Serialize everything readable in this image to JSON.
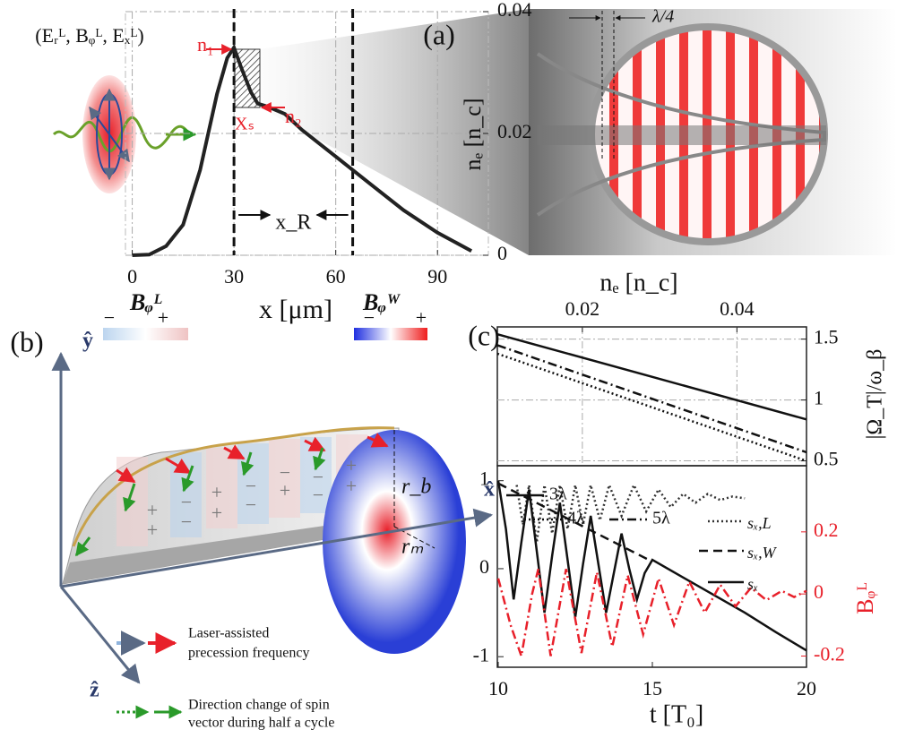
{
  "chart_data": [
    {
      "type": "line",
      "title": "(a)",
      "xlabel": "x [μm]",
      "ylabel": "nₑ [n_c]",
      "x": [
        0,
        5,
        10,
        15,
        20,
        25,
        28,
        30,
        32,
        35,
        37,
        40,
        45,
        50,
        60,
        65,
        70,
        80,
        90,
        100
      ],
      "series": [
        {
          "color": "#222222",
          "dash": "solid",
          "values": [
            0,
            0.0001,
            0.0015,
            0.005,
            0.014,
            0.0265,
            0.0324,
            0.0341,
            0.031,
            0.0268,
            0.0249,
            0.0244,
            0.0232,
            0.0206,
            0.0162,
            0.014,
            0.0118,
            0.0074,
            0.0037,
            0.0007
          ]
        }
      ],
      "xlim": [
        -2,
        105
      ],
      "xticks": [
        0,
        30,
        60,
        90
      ],
      "ylim": [
        0,
        0.04
      ],
      "yticks": [
        0,
        0.02,
        0.04
      ],
      "y_side": "right",
      "x_side": "bottom",
      "grid": true,
      "vlines": [
        30,
        65
      ],
      "annotations": {
        "field": "(Eᵣᴸ, Bᵩᴸ, Eₓᴸ)",
        "n1": "n₁",
        "n2": "n₂",
        "xs": "Xₛ",
        "xr": "x_R",
        "lambda": "λ/4",
        "image_label": "nₑ [n_c]"
      }
    },
    {
      "type": "line",
      "title": "(c)",
      "ylabel": "|Ω_T|/ω_β",
      "series": [
        {
          "name": "3λ",
          "color": "#111111",
          "dash": "solid",
          "x": [
            0.009,
            0.029,
            0.049
          ],
          "values": [
            1.54,
            1.19,
            0.84
          ]
        },
        {
          "name": "4λ",
          "color": "#111111",
          "dash": "dotted",
          "x": [
            0.009,
            0.029,
            0.049
          ],
          "values": [
            1.38,
            0.94,
            0.5
          ]
        },
        {
          "name": "5λ",
          "color": "#111111",
          "dash": "dashdot",
          "x": [
            0.009,
            0.029,
            0.049
          ],
          "values": [
            1.45,
            1.01,
            0.57
          ]
        }
      ],
      "xlim": [
        0.009,
        0.049
      ],
      "xticks": [
        0.02,
        0.04
      ],
      "ylim": [
        0.46,
        1.6
      ],
      "yticks": [
        0.5,
        1,
        1.5
      ],
      "y_side": "right",
      "x_side": "top",
      "grid": true
    },
    {
      "type": "line",
      "xlabel": "t [T₀]",
      "y2label": "Bᵩᴸ",
      "series": [
        {
          "name": "sₓ,L",
          "color": "#333333",
          "dash": "dotted",
          "x": [
            10.6,
            10.8,
            11,
            11.25,
            11.5,
            11.75,
            12,
            12.25,
            12.5,
            12.75,
            13,
            13.3,
            13.6,
            14,
            14.4,
            14.8,
            15.2,
            15.6,
            16,
            16.4,
            16.8,
            17.2,
            17.6,
            18
          ],
          "values": [
            0.95,
            0.5,
            0.95,
            0.3,
            0.95,
            0.4,
            0.95,
            0.45,
            0.95,
            0.5,
            0.95,
            0.55,
            0.95,
            0.6,
            0.95,
            0.65,
            0.9,
            0.7,
            0.85,
            0.75,
            0.85,
            0.78,
            0.82,
            0.8
          ]
        },
        {
          "name": "sₓ,W",
          "color": "#111111",
          "dash": "dashed",
          "x": [
            10,
            15
          ],
          "values": [
            0.97,
            0.08
          ]
        },
        {
          "name": "sₓ",
          "color": "#111111",
          "dash": "solid",
          "x": [
            10,
            10.25,
            10.5,
            10.75,
            11,
            11.25,
            11.5,
            11.75,
            12,
            12.25,
            12.5,
            12.75,
            13,
            13.25,
            13.5,
            13.75,
            14,
            14.25,
            14.5,
            14.75,
            15,
            16,
            17,
            18,
            19,
            20
          ],
          "values": [
            1.0,
            0.45,
            -0.35,
            0.3,
            0.9,
            0.2,
            -0.5,
            0.15,
            0.75,
            0.1,
            -0.55,
            0.05,
            0.6,
            0.05,
            -0.5,
            -0.05,
            0.4,
            0,
            -0.35,
            -0.05,
            0.1,
            -0.1,
            -0.3,
            -0.5,
            -0.72,
            -0.93
          ]
        },
        {
          "color": "#e8202a",
          "dash": "dashdot",
          "axis": "y2",
          "x": [
            10,
            10.4,
            10.75,
            11.1,
            11.3,
            11.7,
            12.2,
            12.7,
            13.2,
            13.7,
            14.2,
            14.7,
            15.2,
            15.7,
            16.2,
            16.7,
            17.2,
            17.7,
            18.2,
            18.7,
            19.2,
            19.6,
            20
          ],
          "values": [
            0.05,
            -0.1,
            -0.2,
            0,
            0.08,
            -0.2,
            0.08,
            -0.19,
            0.07,
            -0.17,
            0.06,
            -0.13,
            0.05,
            -0.1,
            0.04,
            -0.06,
            0.03,
            -0.04,
            0.02,
            -0.02,
            0.01,
            -0.01,
            0.01
          ]
        }
      ],
      "xlim": [
        10,
        20
      ],
      "xticks": [
        10,
        15,
        20
      ],
      "ylim": [
        -1.12,
        1.17
      ],
      "yticks": [
        -1,
        0,
        1
      ],
      "y2lim": [
        -0.236,
        0.413
      ],
      "y2ticks": [
        -0.2,
        0,
        0.2
      ],
      "y2color": "#e8202a",
      "y_side": "left",
      "x_side": "bottom",
      "grid": false
    }
  ],
  "diagram": {
    "label": "(b)",
    "axes": {
      "y": "ŷ",
      "x": "x̂",
      "z": "ẑ"
    },
    "bar_L": {
      "label": "Bᵩᴸ",
      "minus": "−",
      "plus": "+"
    },
    "bar_W": {
      "label": "Bᵩᵂ",
      "minus": "−",
      "plus": "+"
    },
    "r_b": "r_b",
    "r_m": "rₘ",
    "signs": [
      "+",
      "+",
      "−",
      "−",
      "+",
      "+",
      "−",
      "−",
      "−",
      "+",
      "−",
      "−",
      "+",
      "+"
    ],
    "legend": [
      [
        "Laser-assisted",
        "precession frequency"
      ],
      [
        "Direction change of spin",
        "vector during half a cycle"
      ]
    ]
  }
}
